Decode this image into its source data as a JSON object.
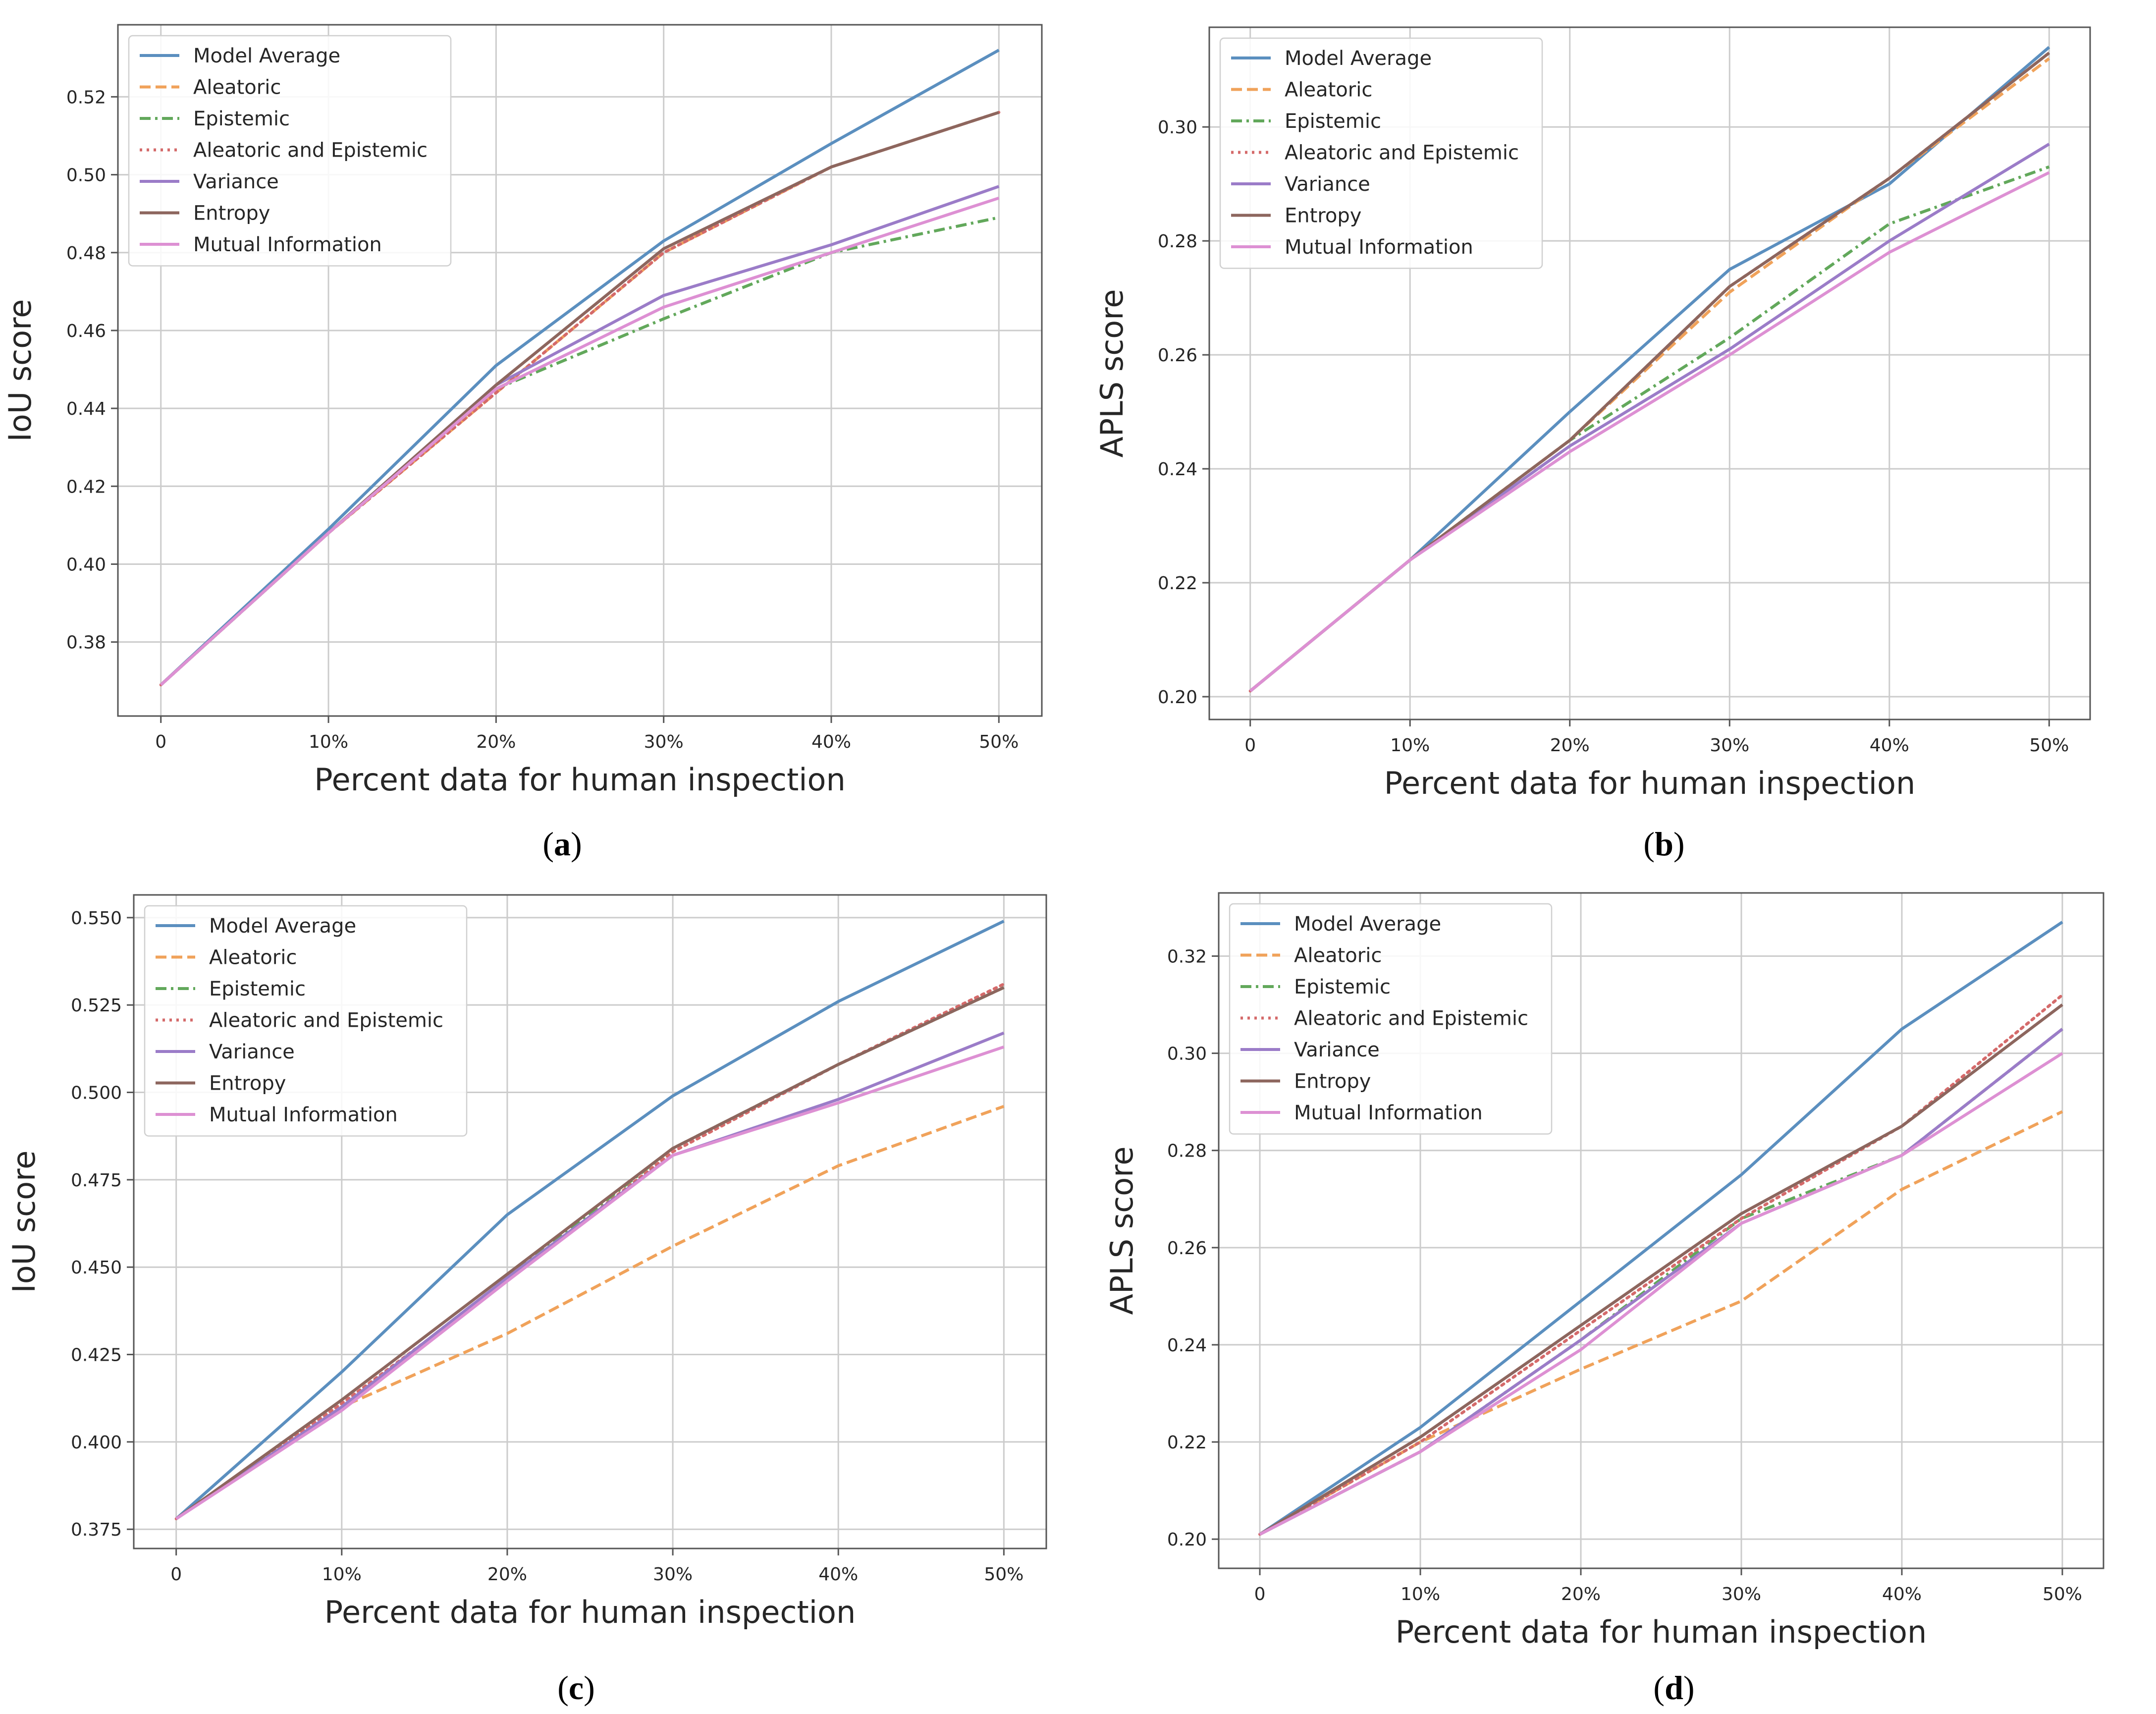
{
  "colors": {
    "Model Average": "#5b8fbf",
    "Aleatoric": "#f0a25a",
    "Epistemic": "#62a85b",
    "Aleatoric and Epistemic": "#d46a6a",
    "Variance": "#9b7cc8",
    "Entropy": "#8d665e",
    "Mutual Information": "#dd90d3"
  },
  "chart_data": [
    {
      "panel": "a",
      "caption": "a",
      "type": "line",
      "xlabel": "Percent data for human inspection",
      "ylabel": "IoU score",
      "categories": [
        "0",
        "10%",
        "20%",
        "30%",
        "40%",
        "50%"
      ],
      "yticks": [
        "0.38",
        "0.40",
        "0.42",
        "0.44",
        "0.46",
        "0.48",
        "0.50",
        "0.52"
      ],
      "ylim": [
        0.361,
        0.5385
      ],
      "legend_position": "top-left",
      "series": [
        {
          "name": "Model Average",
          "style": "solid",
          "values": [
            0.369,
            0.409,
            0.451,
            0.483,
            0.508,
            0.532
          ]
        },
        {
          "name": "Aleatoric",
          "style": "dashed",
          "values": [
            0.369,
            0.408,
            0.444,
            0.48,
            0.502,
            0.516
          ]
        },
        {
          "name": "Epistemic",
          "style": "dashdot",
          "values": [
            0.369,
            0.408,
            0.445,
            0.463,
            0.48,
            0.489
          ]
        },
        {
          "name": "Aleatoric and Epistemic",
          "style": "dotted",
          "values": [
            0.369,
            0.408,
            0.444,
            0.48,
            0.502,
            0.516
          ]
        },
        {
          "name": "Variance",
          "style": "solid",
          "values": [
            0.369,
            0.408,
            0.446,
            0.469,
            0.482,
            0.497
          ]
        },
        {
          "name": "Entropy",
          "style": "solid",
          "values": [
            0.369,
            0.408,
            0.446,
            0.481,
            0.502,
            0.516
          ]
        },
        {
          "name": "Mutual Information",
          "style": "solid",
          "values": [
            0.369,
            0.408,
            0.445,
            0.466,
            0.48,
            0.494
          ]
        }
      ]
    },
    {
      "panel": "b",
      "caption": "b",
      "type": "line",
      "xlabel": "Percent data for human inspection",
      "ylabel": "APLS score",
      "categories": [
        "0",
        "10%",
        "20%",
        "30%",
        "40%",
        "50%"
      ],
      "yticks": [
        "0.20",
        "0.22",
        "0.24",
        "0.26",
        "0.28",
        "0.30"
      ],
      "ylim": [
        0.196,
        0.3175
      ],
      "legend_position": "top-left",
      "series": [
        {
          "name": "Model Average",
          "style": "solid",
          "values": [
            0.201,
            0.224,
            0.25,
            0.275,
            0.29,
            0.314
          ]
        },
        {
          "name": "Aleatoric",
          "style": "dashed",
          "values": [
            0.201,
            0.224,
            0.245,
            0.271,
            0.291,
            0.312
          ]
        },
        {
          "name": "Epistemic",
          "style": "dashdot",
          "values": [
            0.201,
            0.224,
            0.245,
            0.263,
            0.283,
            0.293
          ]
        },
        {
          "name": "Aleatoric and Epistemic",
          "style": "dotted",
          "values": [
            0.201,
            0.224,
            0.245,
            0.272,
            0.291,
            0.313
          ]
        },
        {
          "name": "Variance",
          "style": "solid",
          "values": [
            0.201,
            0.224,
            0.244,
            0.261,
            0.28,
            0.297
          ]
        },
        {
          "name": "Entropy",
          "style": "solid",
          "values": [
            0.201,
            0.224,
            0.245,
            0.272,
            0.291,
            0.313
          ]
        },
        {
          "name": "Mutual Information",
          "style": "solid",
          "values": [
            0.201,
            0.224,
            0.243,
            0.26,
            0.278,
            0.292
          ]
        }
      ]
    },
    {
      "panel": "c",
      "caption": "c",
      "type": "line",
      "xlabel": "Percent data for human inspection",
      "ylabel": "IoU score",
      "categories": [
        "0",
        "10%",
        "20%",
        "30%",
        "40%",
        "50%"
      ],
      "yticks": [
        "0.375",
        "0.400",
        "0.425",
        "0.450",
        "0.475",
        "0.500",
        "0.525",
        "0.550"
      ],
      "ylim": [
        0.3695,
        0.5565
      ],
      "legend_position": "top-left",
      "series": [
        {
          "name": "Model Average",
          "style": "solid",
          "values": [
            0.378,
            0.42,
            0.465,
            0.499,
            0.526,
            0.549
          ]
        },
        {
          "name": "Aleatoric",
          "style": "dashed",
          "values": [
            0.378,
            0.41,
            0.431,
            0.456,
            0.479,
            0.496
          ]
        },
        {
          "name": "Epistemic",
          "style": "dashdot",
          "values": [
            0.378,
            0.41,
            0.447,
            0.484,
            0.508,
            0.53
          ]
        },
        {
          "name": "Aleatoric and Epistemic",
          "style": "dotted",
          "values": [
            0.378,
            0.411,
            0.446,
            0.483,
            0.508,
            0.531
          ]
        },
        {
          "name": "Variance",
          "style": "solid",
          "values": [
            0.378,
            0.41,
            0.447,
            0.482,
            0.498,
            0.517
          ]
        },
        {
          "name": "Entropy",
          "style": "solid",
          "values": [
            0.378,
            0.412,
            0.448,
            0.484,
            0.508,
            0.53
          ]
        },
        {
          "name": "Mutual Information",
          "style": "solid",
          "values": [
            0.378,
            0.409,
            0.446,
            0.482,
            0.497,
            0.513
          ]
        }
      ]
    },
    {
      "panel": "d",
      "caption": "d",
      "type": "line",
      "xlabel": "Percent data for human inspection",
      "ylabel": "APLS score",
      "categories": [
        "0",
        "10%",
        "20%",
        "30%",
        "40%",
        "50%"
      ],
      "yticks": [
        "0.20",
        "0.22",
        "0.24",
        "0.26",
        "0.28",
        "0.30",
        "0.32"
      ],
      "ylim": [
        0.194,
        0.333
      ],
      "legend_position": "top-left",
      "series": [
        {
          "name": "Model Average",
          "style": "solid",
          "values": [
            0.201,
            0.223,
            0.249,
            0.275,
            0.305,
            0.327
          ]
        },
        {
          "name": "Aleatoric",
          "style": "dashed",
          "values": [
            0.201,
            0.22,
            0.235,
            0.249,
            0.272,
            0.288
          ]
        },
        {
          "name": "Epistemic",
          "style": "dashdot",
          "values": [
            0.201,
            0.218,
            0.241,
            0.266,
            0.279,
            0.305
          ]
        },
        {
          "name": "Aleatoric and Epistemic",
          "style": "dotted",
          "values": [
            0.201,
            0.22,
            0.243,
            0.266,
            0.285,
            0.312
          ]
        },
        {
          "name": "Variance",
          "style": "solid",
          "values": [
            0.201,
            0.218,
            0.241,
            0.265,
            0.279,
            0.305
          ]
        },
        {
          "name": "Entropy",
          "style": "solid",
          "values": [
            0.201,
            0.221,
            0.244,
            0.267,
            0.285,
            0.31
          ]
        },
        {
          "name": "Mutual Information",
          "style": "solid",
          "values": [
            0.201,
            0.218,
            0.239,
            0.265,
            0.279,
            0.3
          ]
        }
      ]
    }
  ]
}
